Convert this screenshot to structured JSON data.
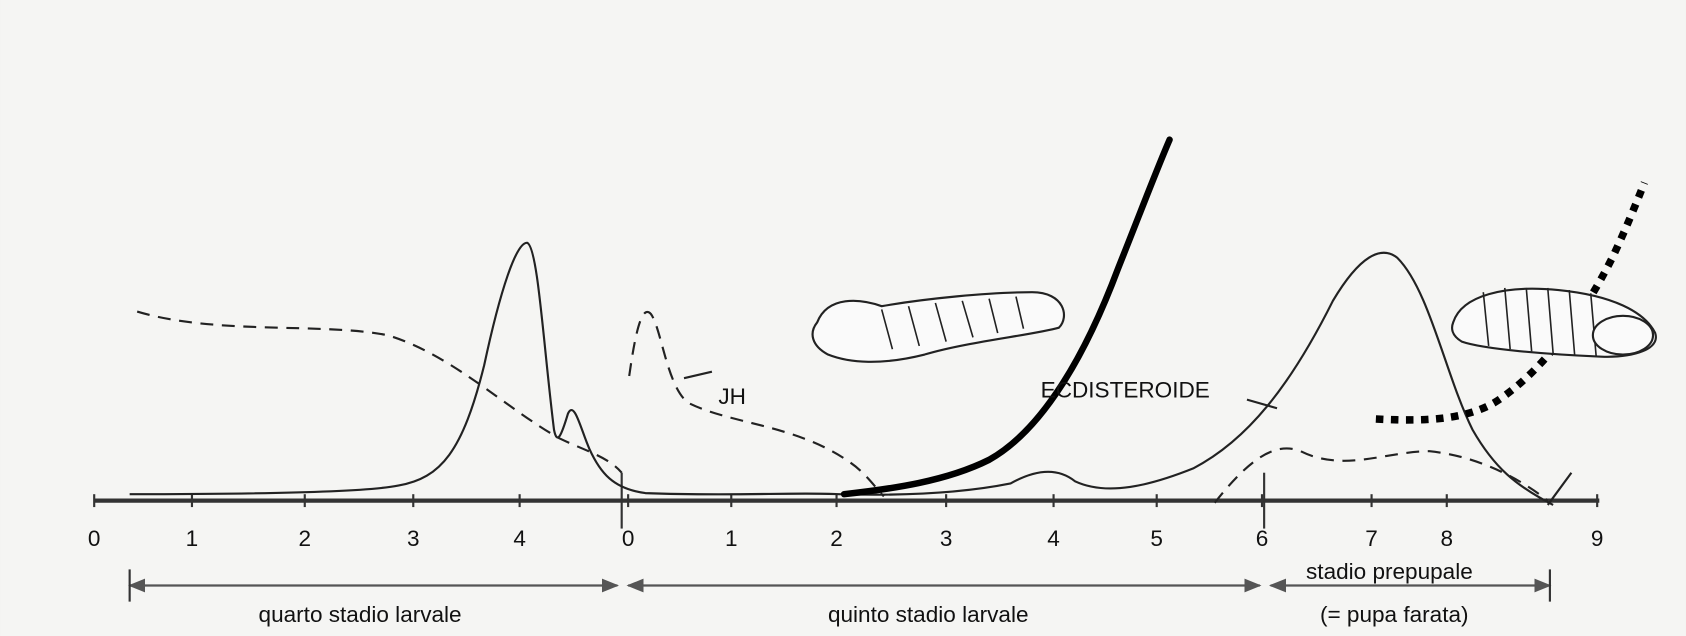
{
  "axis": {
    "tick_labels": [
      "0",
      "1",
      "2",
      "3",
      "4",
      "0",
      "1",
      "2",
      "3",
      "4",
      "5",
      "6",
      "7",
      "8",
      "9"
    ]
  },
  "curves": {
    "jh": "JH",
    "ecdysteroid": "ECDISTEROIDE"
  },
  "stages": {
    "fourth": "quarto stadio larvale",
    "fifth": "quinto stadio larvale",
    "prepupal": "stadio prepupale",
    "prepupal_note": "(= pupa farata)"
  }
}
